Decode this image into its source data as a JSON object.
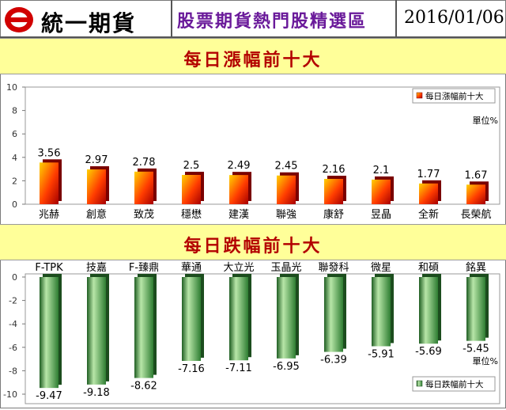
{
  "header": {
    "logo_text": "統一期貨",
    "title": "股票期貨熱門股精選區",
    "date": "2016/01/06"
  },
  "colors": {
    "title_purple": "#6a1a9a",
    "banner_bg": "#ffff99",
    "banner_text": "#b30000",
    "bar_up": "#ff2a00",
    "bar_down": "#2e7d32"
  },
  "chart_data": [
    {
      "type": "bar",
      "title": "每日漲幅前十大",
      "categories": [
        "兆赫",
        "創意",
        "致茂",
        "穩懋",
        "建漢",
        "聯強",
        "康舒",
        "昱晶",
        "全新",
        "長榮航"
      ],
      "values": [
        3.56,
        2.97,
        2.78,
        2.5,
        2.49,
        2.45,
        2.16,
        2.1,
        1.77,
        1.67
      ],
      "value_labels": [
        "3.56",
        "2.97",
        "2.78",
        "2.5",
        "2.49",
        "2.45",
        "2.16",
        "2.1",
        "1.77",
        "1.67"
      ],
      "ylim": [
        0,
        10
      ],
      "yticks": [
        "0",
        "2",
        "4",
        "6",
        "8",
        "10"
      ],
      "legend": "每日漲幅前十大",
      "legend_position": "top-right",
      "unit": "單位%",
      "grid": false
    },
    {
      "type": "bar",
      "title": "每日跌幅前十大",
      "categories": [
        "F-TPK",
        "技嘉",
        "F-臻鼎",
        "華通",
        "大立光",
        "玉晶光",
        "聯發科",
        "微星",
        "和碩",
        "銘異"
      ],
      "values": [
        -9.47,
        -9.18,
        -8.62,
        -7.16,
        -7.11,
        -6.95,
        -6.39,
        -5.91,
        -5.69,
        -5.45
      ],
      "value_labels": [
        "-9.47",
        "-9.18",
        "-8.62",
        "-7.16",
        "-7.11",
        "-6.95",
        "-6.39",
        "-5.91",
        "-5.69",
        "-5.45"
      ],
      "ylim": [
        -10,
        0
      ],
      "yticks": [
        "0",
        "-2",
        "-4",
        "-6",
        "-8",
        "-10"
      ],
      "legend": "每日跌幅前十大",
      "legend_position": "bottom-right",
      "unit": "單位%",
      "grid": false
    }
  ]
}
